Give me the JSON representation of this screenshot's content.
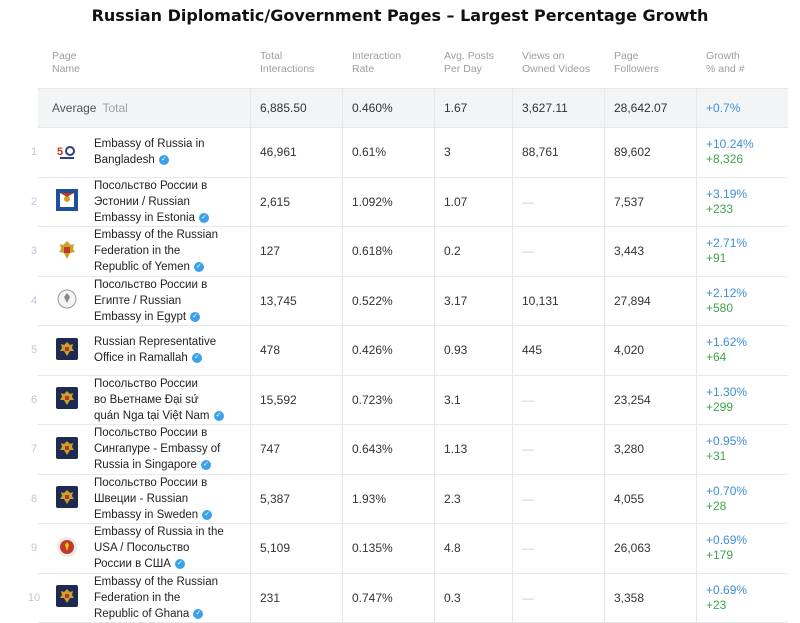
{
  "title": "Russian Diplomatic/Government Pages – Largest Percentage Growth",
  "columns": {
    "page_name": "Page\nName",
    "total_interactions": "Total\nInteractions",
    "interaction_rate": "Interaction\nRate",
    "avg_posts": "Avg. Posts\nPer Day",
    "views": "Views on\nOwned Videos",
    "followers": "Page\nFollowers",
    "growth": "Growth\n% and #"
  },
  "average": {
    "label": "Average",
    "sub": "Total",
    "total_interactions": "6,885.50",
    "interaction_rate": "0.460%",
    "avg_posts": "1.67",
    "views": "3,627.11",
    "followers": "28,642.07",
    "growth_pct": "+0.7%"
  },
  "rows": [
    {
      "idx": "1",
      "name": "Embassy of Russia in\nBangladesh",
      "logo": "anniversary-50-icon",
      "total_interactions": "46,961",
      "interaction_rate": "0.61%",
      "avg_posts": "3",
      "views": "88,761",
      "followers": "89,602",
      "growth_pct": "+10.24%",
      "growth_num": "+8,326"
    },
    {
      "idx": "2",
      "name": "Посольство России в\nЭстонии / Russian\nEmbassy in Estonia",
      "logo": "embassy-book-icon",
      "total_interactions": "2,615",
      "interaction_rate": "1.092%",
      "avg_posts": "1.07",
      "views": "—",
      "followers": "7,537",
      "growth_pct": "+3.19%",
      "growth_num": "+233"
    },
    {
      "idx": "3",
      "name": "Embassy of the Russian\nFederation in the\nRepublic of Yemen",
      "logo": "coat-of-arms-icon",
      "total_interactions": "127",
      "interaction_rate": "0.618%",
      "avg_posts": "0.2",
      "views": "—",
      "followers": "3,443",
      "growth_pct": "+2.71%",
      "growth_num": "+91"
    },
    {
      "idx": "4",
      "name": "Посольство России в\nЕгипте / Russian\nEmbassy in Egypt",
      "logo": "seal-icon",
      "total_interactions": "13,745",
      "interaction_rate": "0.522%",
      "avg_posts": "3.17",
      "views": "10,131",
      "followers": "27,894",
      "growth_pct": "+2.12%",
      "growth_num": "+580"
    },
    {
      "idx": "5",
      "name": "Russian Representative\nOffice in Ramallah",
      "logo": "eagle-icon",
      "total_interactions": "478",
      "interaction_rate": "0.426%",
      "avg_posts": "0.93",
      "views": "445",
      "followers": "4,020",
      "growth_pct": "+1.62%",
      "growth_num": "+64"
    },
    {
      "idx": "6",
      "name": "Посольство России\nво Вьетнаме Đại sứ\nquán Nga tại Việt Nam",
      "logo": "eagle-icon",
      "total_interactions": "15,592",
      "interaction_rate": "0.723%",
      "avg_posts": "3.1",
      "views": "—",
      "followers": "23,254",
      "growth_pct": "+1.30%",
      "growth_num": "+299"
    },
    {
      "idx": "7",
      "name": "Посольство России в\nСингапуре - Embassy of\nRussia in Singapore",
      "logo": "eagle-icon",
      "total_interactions": "747",
      "interaction_rate": "0.643%",
      "avg_posts": "1.13",
      "views": "—",
      "followers": "3,280",
      "growth_pct": "+0.95%",
      "growth_num": "+31"
    },
    {
      "idx": "8",
      "name": "Посольство России в\nШвеции - Russian\nEmbassy in Sweden",
      "logo": "eagle-icon",
      "total_interactions": "5,387",
      "interaction_rate": "1.93%",
      "avg_posts": "2.3",
      "views": "—",
      "followers": "4,055",
      "growth_pct": "+0.70%",
      "growth_num": "+28"
    },
    {
      "idx": "9",
      "name": "Embassy of Russia in the\nUSA / Посольство\nРоссии в США",
      "logo": "emblem-icon",
      "total_interactions": "5,109",
      "interaction_rate": "0.135%",
      "avg_posts": "4.8",
      "views": "—",
      "followers": "26,063",
      "growth_pct": "+0.69%",
      "growth_num": "+179"
    },
    {
      "idx": "10",
      "name": "Embassy of the Russian\nFederation in the\nRepublic of Ghana",
      "logo": "eagle-icon",
      "total_interactions": "231",
      "interaction_rate": "0.747%",
      "avg_posts": "0.3",
      "views": "—",
      "followers": "3,358",
      "growth_pct": "+0.69%",
      "growth_num": "+23"
    }
  ]
}
